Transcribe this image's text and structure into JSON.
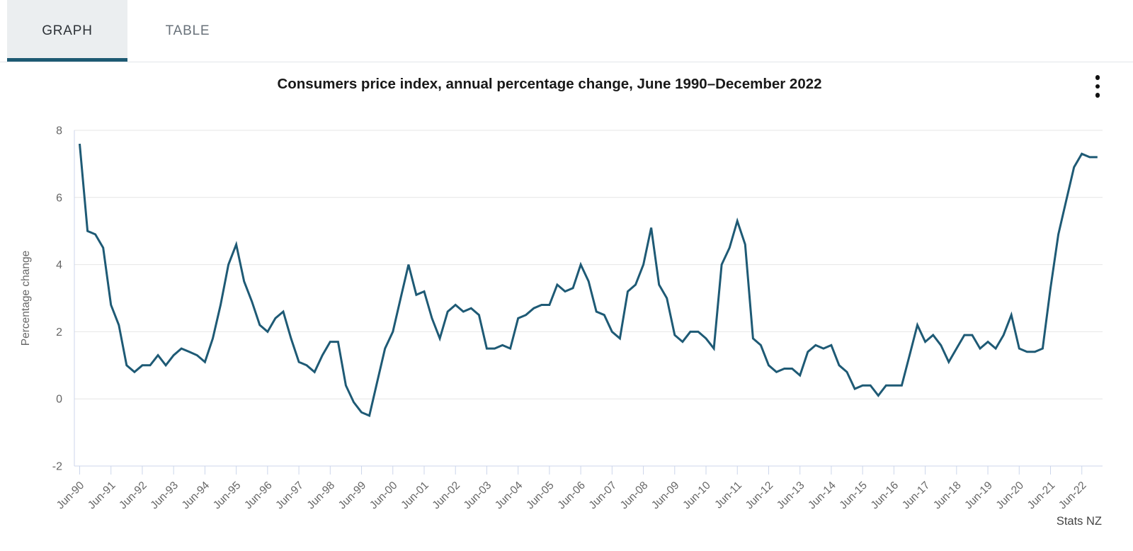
{
  "tabs": [
    {
      "label": "GRAPH",
      "active": true
    },
    {
      "label": "TABLE",
      "active": false
    }
  ],
  "menu": {
    "icon": "kebab-menu-icon"
  },
  "colors": {
    "line": "#1e5a75",
    "grid": "#e6e6e6",
    "axis": "#ccd6eb",
    "axis_label": "#666666",
    "credits_text": "#444444",
    "tab_accent": "#1d5a73",
    "active_tab_bg": "#ebeef0"
  },
  "chart_data": {
    "type": "line",
    "title": "Consumers price index, annual percentage change, June 1990–December 2022",
    "ylabel": "Percentage change",
    "credits": "Stats NZ",
    "frequency": "quarterly",
    "start_period": "Jun-90",
    "end_period": "Dec-22",
    "ylim": [
      -2,
      8
    ],
    "y_ticks": [
      8,
      6,
      4,
      2,
      0,
      -2
    ],
    "x_tick_labels": [
      "Jun-90",
      "Jun-91",
      "Jun-92",
      "Jun-93",
      "Jun-94",
      "Jun-95",
      "Jun-96",
      "Jun-97",
      "Jun-98",
      "Jun-99",
      "Jun-00",
      "Jun-01",
      "Jun-02",
      "Jun-03",
      "Jun-04",
      "Jun-05",
      "Jun-06",
      "Jun-07",
      "Jun-08",
      "Jun-09",
      "Jun-10",
      "Jun-11",
      "Jun-12",
      "Jun-13",
      "Jun-14",
      "Jun-15",
      "Jun-16",
      "Jun-17",
      "Jun-18",
      "Jun-19",
      "Jun-20",
      "Jun-21",
      "Jun-22"
    ],
    "grid": true,
    "legend": "none",
    "series": [
      {
        "name": "CPI annual percentage change",
        "values": [
          7.6,
          5.0,
          4.9,
          4.5,
          2.8,
          2.2,
          1.0,
          0.8,
          1.0,
          1.0,
          1.3,
          1.0,
          1.3,
          1.5,
          1.4,
          1.3,
          1.1,
          1.8,
          2.8,
          4.0,
          4.6,
          3.5,
          2.9,
          2.2,
          2.0,
          2.4,
          2.6,
          1.8,
          1.1,
          1.0,
          0.8,
          1.3,
          1.7,
          1.7,
          0.4,
          -0.1,
          -0.4,
          -0.5,
          0.5,
          1.5,
          2.0,
          3.0,
          4.0,
          3.1,
          3.2,
          2.4,
          1.8,
          2.6,
          2.8,
          2.6,
          2.7,
          2.5,
          1.5,
          1.5,
          1.6,
          1.5,
          2.4,
          2.5,
          2.7,
          2.8,
          2.8,
          3.4,
          3.2,
          3.3,
          4.0,
          3.5,
          2.6,
          2.5,
          2.0,
          1.8,
          3.2,
          3.4,
          4.0,
          5.1,
          3.4,
          3.0,
          1.9,
          1.7,
          2.0,
          2.0,
          1.8,
          1.5,
          4.0,
          4.5,
          5.3,
          4.6,
          1.8,
          1.6,
          1.0,
          0.8,
          0.9,
          0.9,
          0.7,
          1.4,
          1.6,
          1.5,
          1.6,
          1.0,
          0.8,
          0.3,
          0.4,
          0.4,
          0.1,
          0.4,
          0.4,
          0.4,
          1.3,
          2.2,
          1.7,
          1.9,
          1.6,
          1.1,
          1.5,
          1.9,
          1.9,
          1.5,
          1.7,
          1.5,
          1.9,
          2.5,
          1.5,
          1.4,
          1.4,
          1.5,
          3.3,
          4.9,
          5.9,
          6.9,
          7.3,
          7.2,
          7.2
        ]
      }
    ]
  }
}
